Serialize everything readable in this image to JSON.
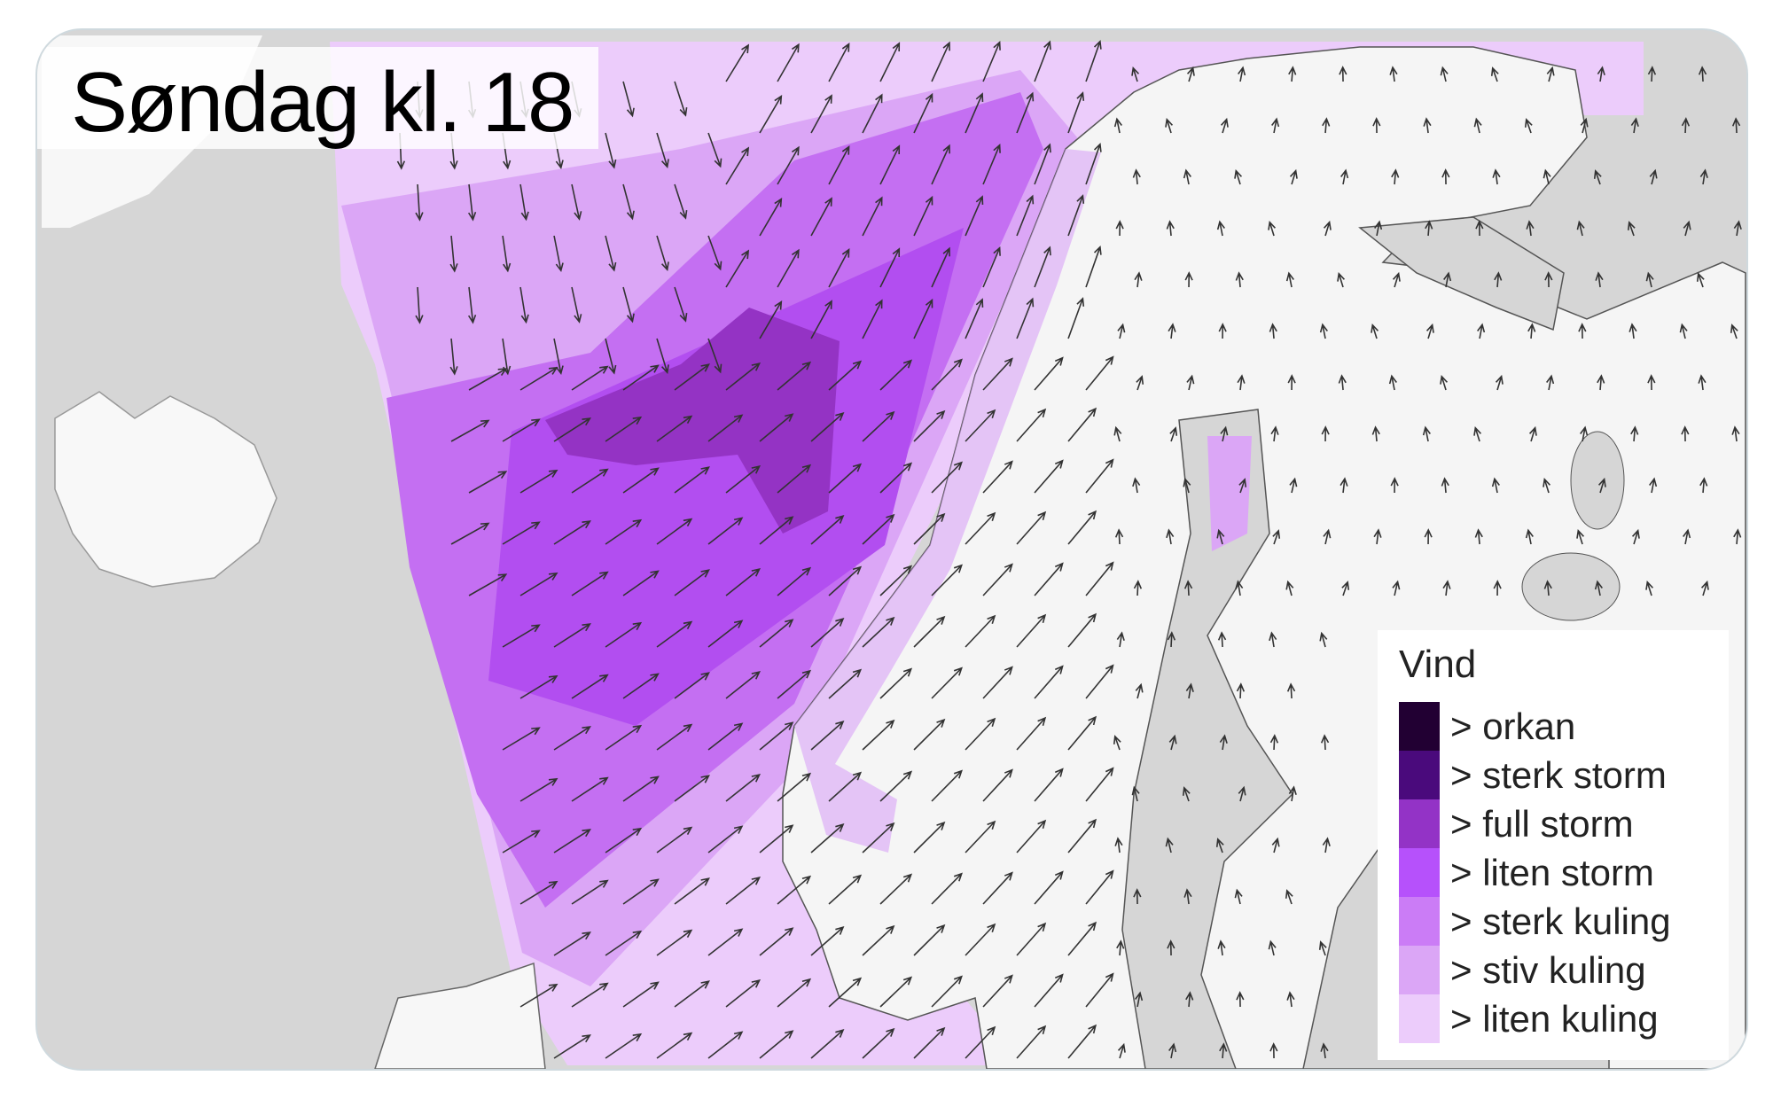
{
  "title": "Søndag kl. 18",
  "map": {
    "sea_color": "#d6d6d6",
    "land_color": "#f7f7f7"
  },
  "legend": {
    "title": "Vind",
    "items": [
      {
        "label": "> orkan",
        "color": "#220033"
      },
      {
        "label": "> sterk storm",
        "color": "#4a0a7c"
      },
      {
        "label": "> full storm",
        "color": "#9333c6"
      },
      {
        "label": "> liten storm",
        "color": "#b651fb"
      },
      {
        "label": "> sterk kuling",
        "color": "#cb7cf6"
      },
      {
        "label": "> stiv kuling",
        "color": "#dba6f6"
      },
      {
        "label": "> liten kuling",
        "color": "#ecccfb"
      }
    ]
  }
}
